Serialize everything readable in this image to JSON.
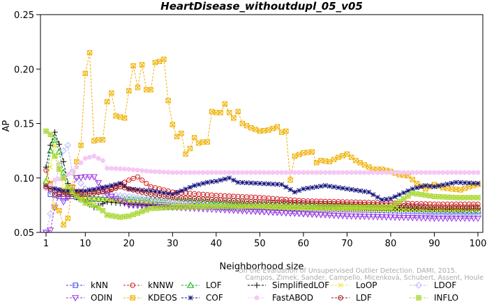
{
  "chart_data": {
    "type": "line",
    "title": "HeartDisease_withoutdupl_05_v05",
    "xlabel": "Neighborhood size",
    "ylabel": "AP",
    "xlim": [
      1,
      100
    ],
    "ylim": [
      0.05,
      0.25
    ],
    "x_ticks": [
      1,
      10,
      20,
      30,
      40,
      50,
      60,
      70,
      80,
      90,
      100
    ],
    "y_ticks": [
      0.05,
      0.1,
      0.15,
      0.2,
      0.25
    ],
    "y_tick_labels": [
      "0.05",
      "0.10",
      "0.15",
      "0.20",
      "0.25"
    ],
    "grid": false,
    "legend_position": "bottom",
    "credit_line1": "Campos, Zimek, Sander, Campello, Micenková, Schubert, Assent, Houle",
    "credit_line2": "On the Evaluation of Unsupervised Outlier Detection. DAMI, 2015.",
    "series": [
      {
        "name": "kNN",
        "color": "#3a3af0",
        "marker": "square",
        "keypoints": [
          [
            1,
            0.092
          ],
          [
            2,
            0.085
          ],
          [
            3,
            0.084
          ],
          [
            4,
            0.083
          ],
          [
            5,
            0.083
          ],
          [
            7,
            0.083
          ],
          [
            10,
            0.081
          ],
          [
            15,
            0.08
          ],
          [
            20,
            0.078
          ],
          [
            30,
            0.075
          ],
          [
            40,
            0.074
          ],
          [
            50,
            0.073
          ],
          [
            60,
            0.072
          ],
          [
            70,
            0.071
          ],
          [
            80,
            0.07
          ],
          [
            90,
            0.069
          ],
          [
            100,
            0.069
          ]
        ]
      },
      {
        "name": "kNNW",
        "color": "#d42020",
        "marker": "circle",
        "keypoints": [
          [
            1,
            0.107
          ],
          [
            2,
            0.094
          ],
          [
            3,
            0.09
          ],
          [
            5,
            0.088
          ],
          [
            10,
            0.087
          ],
          [
            15,
            0.088
          ],
          [
            20,
            0.098
          ],
          [
            22,
            0.101
          ],
          [
            25,
            0.092
          ],
          [
            30,
            0.087
          ],
          [
            40,
            0.084
          ],
          [
            50,
            0.082
          ],
          [
            60,
            0.079
          ],
          [
            70,
            0.078
          ],
          [
            80,
            0.077
          ],
          [
            90,
            0.076
          ],
          [
            100,
            0.076
          ]
        ]
      },
      {
        "name": "LOF",
        "color": "#10b010",
        "marker": "triangle-up",
        "keypoints": [
          [
            1,
            0.097
          ],
          [
            2,
            0.125
          ],
          [
            3,
            0.135
          ],
          [
            4,
            0.124
          ],
          [
            5,
            0.105
          ],
          [
            6,
            0.088
          ],
          [
            8,
            0.084
          ],
          [
            10,
            0.082
          ],
          [
            15,
            0.08
          ],
          [
            20,
            0.08
          ],
          [
            30,
            0.079
          ],
          [
            40,
            0.077
          ],
          [
            50,
            0.076
          ],
          [
            60,
            0.075
          ],
          [
            70,
            0.074
          ],
          [
            80,
            0.072
          ],
          [
            90,
            0.071
          ],
          [
            100,
            0.07
          ]
        ]
      },
      {
        "name": "SimplifiedLOF",
        "color": "#000000",
        "marker": "plus",
        "keypoints": [
          [
            1,
            0.11
          ],
          [
            2,
            0.13
          ],
          [
            3,
            0.142
          ],
          [
            4,
            0.131
          ],
          [
            5,
            0.115
          ],
          [
            6,
            0.095
          ],
          [
            8,
            0.082
          ],
          [
            10,
            0.078
          ],
          [
            12,
            0.073
          ],
          [
            15,
            0.078
          ],
          [
            20,
            0.076
          ],
          [
            30,
            0.074
          ],
          [
            40,
            0.073
          ],
          [
            50,
            0.073
          ],
          [
            60,
            0.072
          ],
          [
            70,
            0.071
          ],
          [
            80,
            0.071
          ],
          [
            90,
            0.071
          ],
          [
            100,
            0.072
          ]
        ]
      },
      {
        "name": "LoOP",
        "color": "#f0e020",
        "marker": "x",
        "keypoints": [
          [
            1,
            0.097
          ],
          [
            2,
            0.11
          ],
          [
            3,
            0.13
          ],
          [
            4,
            0.112
          ],
          [
            5,
            0.09
          ],
          [
            8,
            0.083
          ],
          [
            10,
            0.081
          ],
          [
            15,
            0.08
          ],
          [
            20,
            0.078
          ],
          [
            30,
            0.076
          ],
          [
            40,
            0.074
          ],
          [
            50,
            0.073
          ],
          [
            60,
            0.072
          ],
          [
            70,
            0.071
          ],
          [
            80,
            0.071
          ],
          [
            90,
            0.071
          ],
          [
            100,
            0.071
          ]
        ]
      },
      {
        "name": "LDOF",
        "color": "#b8b8f8",
        "marker": "diamond",
        "keypoints": [
          [
            1,
            0.05
          ],
          [
            2,
            0.067
          ],
          [
            3,
            0.09
          ],
          [
            4,
            0.112
          ],
          [
            5,
            0.125
          ],
          [
            6,
            0.13
          ],
          [
            7,
            0.105
          ],
          [
            10,
            0.09
          ],
          [
            15,
            0.085
          ],
          [
            20,
            0.083
          ],
          [
            30,
            0.078
          ],
          [
            40,
            0.073
          ],
          [
            50,
            0.07
          ],
          [
            60,
            0.068
          ],
          [
            70,
            0.067
          ],
          [
            80,
            0.066
          ],
          [
            90,
            0.066
          ],
          [
            100,
            0.066
          ]
        ]
      },
      {
        "name": "ODIN",
        "color": "#9a30e0",
        "marker": "triangle-down",
        "keypoints": [
          [
            1,
            0.05
          ],
          [
            2,
            0.052
          ],
          [
            3,
            0.073
          ],
          [
            4,
            0.085
          ],
          [
            5,
            0.078
          ],
          [
            6,
            0.082
          ],
          [
            8,
            0.1
          ],
          [
            10,
            0.101
          ],
          [
            12,
            0.101
          ],
          [
            15,
            0.085
          ],
          [
            20,
            0.075
          ],
          [
            30,
            0.073
          ],
          [
            40,
            0.071
          ],
          [
            50,
            0.069
          ],
          [
            60,
            0.067
          ],
          [
            70,
            0.065
          ],
          [
            80,
            0.064
          ],
          [
            90,
            0.063
          ],
          [
            100,
            0.063
          ]
        ]
      },
      {
        "name": "KDEOS",
        "color": "#f0b000",
        "marker": "boxed-x",
        "keypoints": [
          [
            1,
            0.092
          ],
          [
            2,
            0.095
          ],
          [
            3,
            0.073
          ],
          [
            4,
            0.07
          ],
          [
            5,
            0.057
          ],
          [
            6,
            0.063
          ],
          [
            7,
            0.092
          ],
          [
            8,
            0.115
          ],
          [
            9,
            0.13
          ],
          [
            10,
            0.196
          ],
          [
            11,
            0.215
          ],
          [
            12,
            0.134
          ],
          [
            13,
            0.135
          ],
          [
            14,
            0.135
          ],
          [
            15,
            0.17
          ],
          [
            16,
            0.178
          ],
          [
            17,
            0.157
          ],
          [
            18,
            0.156
          ],
          [
            19,
            0.155
          ],
          [
            20,
            0.18
          ],
          [
            21,
            0.203
          ],
          [
            22,
            0.183
          ],
          [
            23,
            0.204
          ],
          [
            24,
            0.181
          ],
          [
            25,
            0.181
          ],
          [
            26,
            0.206
          ],
          [
            27,
            0.207
          ],
          [
            28,
            0.209
          ],
          [
            29,
            0.171
          ],
          [
            30,
            0.149
          ],
          [
            31,
            0.138
          ],
          [
            32,
            0.141
          ],
          [
            33,
            0.122
          ],
          [
            34,
            0.127
          ],
          [
            35,
            0.137
          ],
          [
            36,
            0.132
          ],
          [
            37,
            0.133
          ],
          [
            38,
            0.133
          ],
          [
            39,
            0.161
          ],
          [
            40,
            0.16
          ],
          [
            41,
            0.16
          ],
          [
            42,
            0.168
          ],
          [
            43,
            0.16
          ],
          [
            44,
            0.155
          ],
          [
            45,
            0.161
          ],
          [
            46,
            0.15
          ],
          [
            47,
            0.148
          ],
          [
            48,
            0.146
          ],
          [
            50,
            0.143
          ],
          [
            52,
            0.144
          ],
          [
            54,
            0.147
          ],
          [
            55,
            0.142
          ],
          [
            56,
            0.143
          ],
          [
            57,
            0.098
          ],
          [
            58,
            0.12
          ],
          [
            60,
            0.123
          ],
          [
            62,
            0.124
          ],
          [
            63,
            0.114
          ],
          [
            64,
            0.116
          ],
          [
            66,
            0.115
          ],
          [
            68,
            0.119
          ],
          [
            70,
            0.122
          ],
          [
            72,
            0.116
          ],
          [
            74,
            0.112
          ],
          [
            76,
            0.108
          ],
          [
            78,
            0.108
          ],
          [
            80,
            0.106
          ],
          [
            82,
            0.103
          ],
          [
            84,
            0.102
          ],
          [
            86,
            0.095
          ],
          [
            88,
            0.09
          ],
          [
            90,
            0.094
          ],
          [
            92,
            0.091
          ],
          [
            94,
            0.09
          ],
          [
            96,
            0.089
          ],
          [
            98,
            0.092
          ],
          [
            100,
            0.094
          ]
        ]
      },
      {
        "name": "COF",
        "color": "#10107a",
        "marker": "asterisk",
        "keypoints": [
          [
            1,
            0.092
          ],
          [
            2,
            0.091
          ],
          [
            3,
            0.09
          ],
          [
            5,
            0.088
          ],
          [
            10,
            0.088
          ],
          [
            15,
            0.092
          ],
          [
            18,
            0.095
          ],
          [
            20,
            0.09
          ],
          [
            25,
            0.088
          ],
          [
            30,
            0.085
          ],
          [
            35,
            0.093
          ],
          [
            38,
            0.096
          ],
          [
            40,
            0.097
          ],
          [
            43,
            0.1
          ],
          [
            45,
            0.096
          ],
          [
            50,
            0.095
          ],
          [
            55,
            0.094
          ],
          [
            58,
            0.087
          ],
          [
            60,
            0.09
          ],
          [
            65,
            0.093
          ],
          [
            70,
            0.09
          ],
          [
            75,
            0.087
          ],
          [
            78,
            0.08
          ],
          [
            80,
            0.081
          ],
          [
            85,
            0.09
          ],
          [
            88,
            0.093
          ],
          [
            90,
            0.092
          ],
          [
            95,
            0.096
          ],
          [
            100,
            0.095
          ]
        ]
      },
      {
        "name": "FastABOD",
        "color": "#f5c8f5",
        "marker": "filled-circle",
        "keypoints": [
          [
            1,
            0.09
          ],
          [
            2,
            0.093
          ],
          [
            3,
            0.098
          ],
          [
            5,
            0.1
          ],
          [
            8,
            0.11
          ],
          [
            10,
            0.118
          ],
          [
            12,
            0.12
          ],
          [
            14,
            0.116
          ],
          [
            15,
            0.109
          ],
          [
            20,
            0.108
          ],
          [
            25,
            0.106
          ],
          [
            30,
            0.105
          ],
          [
            40,
            0.105
          ],
          [
            50,
            0.105
          ],
          [
            60,
            0.105
          ],
          [
            70,
            0.105
          ],
          [
            80,
            0.105
          ],
          [
            90,
            0.105
          ],
          [
            100,
            0.105
          ]
        ]
      },
      {
        "name": "LDF",
        "color": "#a01818",
        "marker": "circle-dot",
        "keypoints": [
          [
            1,
            0.092
          ],
          [
            2,
            0.09
          ],
          [
            3,
            0.085
          ],
          [
            5,
            0.085
          ],
          [
            10,
            0.085
          ],
          [
            15,
            0.088
          ],
          [
            18,
            0.092
          ],
          [
            20,
            0.09
          ],
          [
            25,
            0.085
          ],
          [
            30,
            0.082
          ],
          [
            40,
            0.08
          ],
          [
            50,
            0.078
          ],
          [
            60,
            0.077
          ],
          [
            70,
            0.076
          ],
          [
            80,
            0.075
          ],
          [
            90,
            0.073
          ],
          [
            100,
            0.073
          ]
        ]
      },
      {
        "name": "INFLO",
        "color": "#a8d830",
        "marker": "boxed-star",
        "keypoints": [
          [
            1,
            0.143
          ],
          [
            2,
            0.14
          ],
          [
            3,
            0.12
          ],
          [
            4,
            0.108
          ],
          [
            5,
            0.1
          ],
          [
            6,
            0.092
          ],
          [
            8,
            0.083
          ],
          [
            10,
            0.077
          ],
          [
            12,
            0.075
          ],
          [
            14,
            0.07
          ],
          [
            15,
            0.066
          ],
          [
            18,
            0.064
          ],
          [
            20,
            0.065
          ],
          [
            25,
            0.072
          ],
          [
            30,
            0.073
          ],
          [
            40,
            0.074
          ],
          [
            50,
            0.074
          ],
          [
            60,
            0.073
          ],
          [
            70,
            0.073
          ],
          [
            80,
            0.073
          ],
          [
            85,
            0.086
          ],
          [
            90,
            0.083
          ],
          [
            95,
            0.082
          ],
          [
            100,
            0.082
          ]
        ]
      }
    ]
  }
}
